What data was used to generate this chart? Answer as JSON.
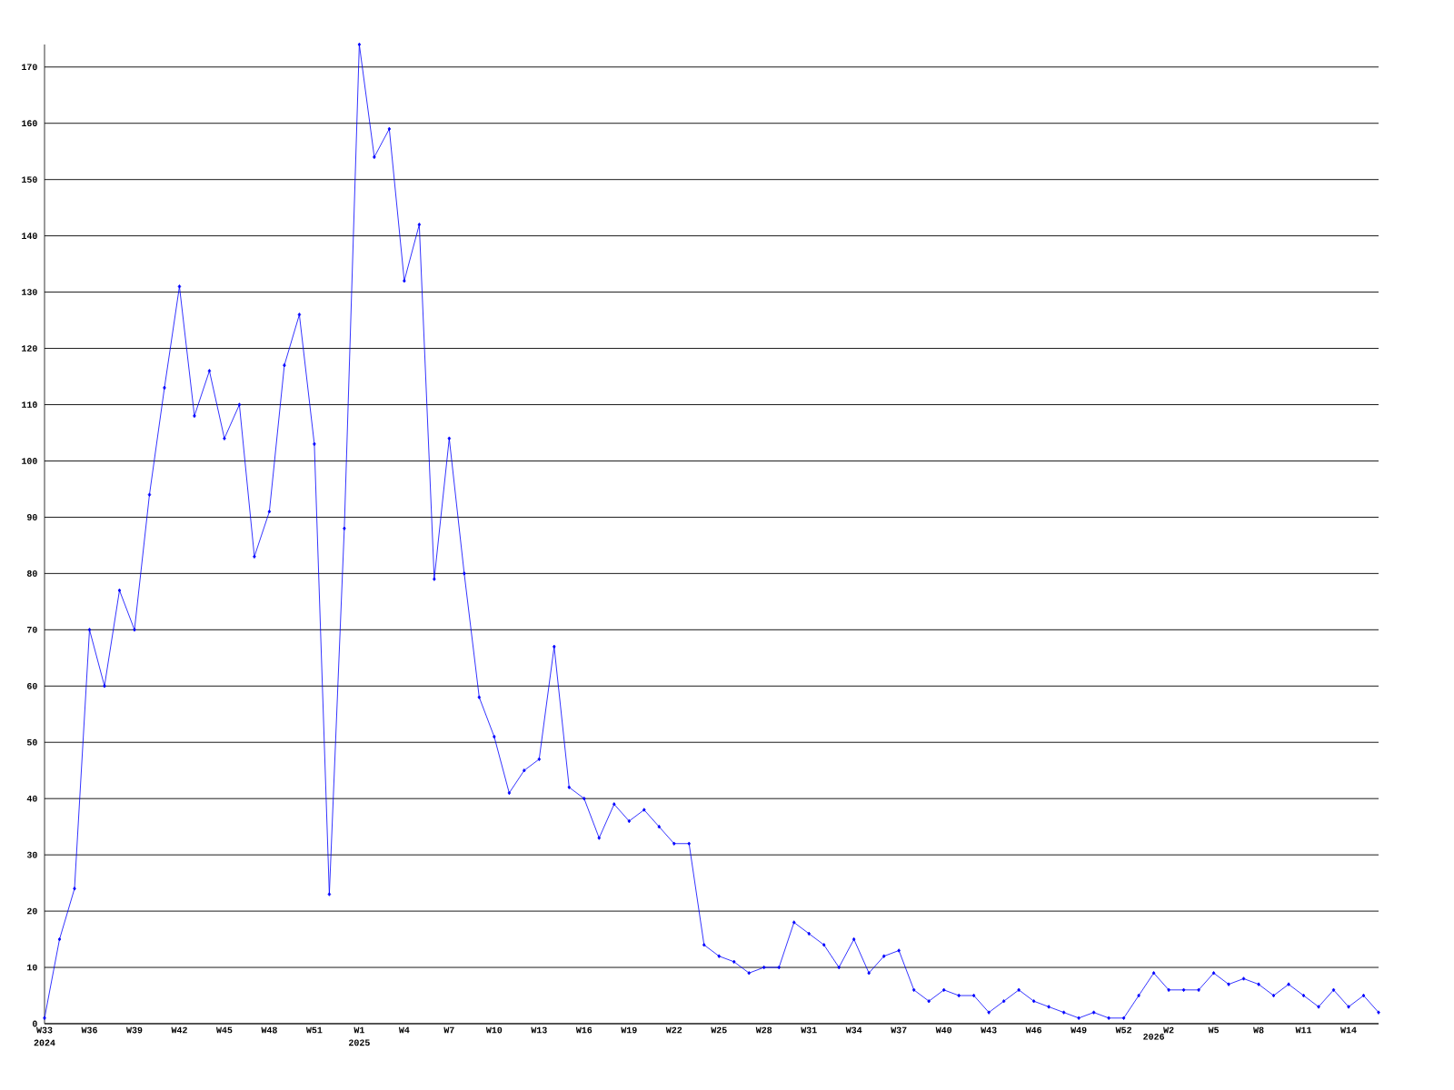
{
  "chart_data": {
    "type": "line",
    "categories": [
      "W33 2024",
      null,
      null,
      "W36",
      null,
      null,
      "W39",
      null,
      null,
      "W42",
      null,
      null,
      "W45",
      null,
      null,
      "W48",
      null,
      null,
      "W51",
      null,
      null,
      "W1 2025",
      null,
      null,
      "W4",
      null,
      null,
      "W7",
      null,
      null,
      "W10",
      null,
      null,
      "W13",
      null,
      null,
      "W16",
      null,
      null,
      "W19",
      null,
      null,
      "W22",
      null,
      null,
      "W25",
      null,
      null,
      "W28",
      null,
      null,
      "W31",
      null,
      null,
      "W34",
      null,
      null,
      "W37",
      null,
      null,
      "W40",
      null,
      null,
      "W43",
      null,
      null,
      "W46",
      null,
      null,
      "W49",
      null,
      null,
      "W52",
      null,
      "2026",
      "W2",
      null,
      null,
      "W5",
      null,
      null,
      "W8",
      null,
      null,
      "W11",
      null,
      null,
      "W14",
      null,
      null
    ],
    "values": [
      1,
      15,
      24,
      70,
      60,
      77,
      70,
      94,
      113,
      131,
      108,
      116,
      104,
      110,
      83,
      91,
      117,
      126,
      103,
      23,
      88,
      174,
      154,
      159,
      132,
      142,
      79,
      104,
      80,
      58,
      51,
      41,
      45,
      47,
      67,
      42,
      40,
      33,
      39,
      36,
      38,
      35,
      32,
      32,
      14,
      12,
      11,
      9,
      10,
      10,
      18,
      16,
      14,
      10,
      15,
      9,
      12,
      13,
      6,
      4,
      6,
      5,
      5,
      2,
      4,
      6,
      4,
      3,
      2,
      1,
      2,
      1,
      1,
      5,
      9,
      6,
      6,
      6,
      9,
      7,
      8,
      7,
      5,
      7,
      5,
      3,
      6,
      3,
      5,
      2
    ],
    "color": "#0000ff",
    "marker": "diamond",
    "line_style": "solid",
    "grid": "y",
    "ylim": [
      0,
      174
    ],
    "yticks": [
      0,
      10,
      20,
      30,
      40,
      50,
      60,
      70,
      80,
      90,
      100,
      110,
      120,
      130,
      140,
      150,
      160,
      170
    ]
  }
}
